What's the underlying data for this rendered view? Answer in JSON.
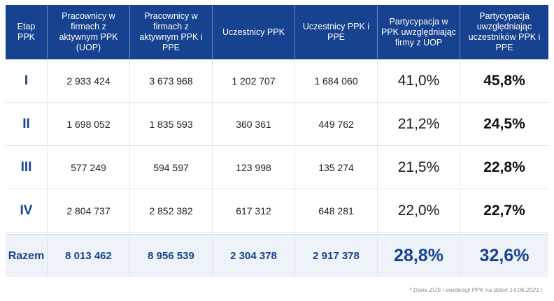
{
  "table": {
    "headers": [
      "Etap PPK",
      "Pracownicy w firmach z aktywnym PPK (UOP)",
      "Pracownicy w firmach z aktywnym PPK i PPE",
      "Uczestnicy PPK",
      "Uczestnicy PPK i PPE",
      "Partycypacja w PPK uwzględniając firmy z UOP",
      "Partycypacja uwzględniając uczestników PPK i PPE"
    ],
    "rows": [
      [
        "I",
        "2 933 424",
        "3 673 968",
        "1 202 707",
        "1 684 060",
        "41,0%",
        "45,8%"
      ],
      [
        "II",
        "1 698 052",
        "1 835 593",
        "360 361",
        "449 762",
        "21,2%",
        "24,5%"
      ],
      [
        "III",
        "577 249",
        "594 597",
        "123 998",
        "135 274",
        "21,5%",
        "22,8%"
      ],
      [
        "IV",
        "2 804 737",
        "2 852 382",
        "617 312",
        "648 281",
        "22,0%",
        "22,7%"
      ]
    ],
    "total": [
      "Razem",
      "8 013 462",
      "8 956 539",
      "2 304 378",
      "2 917 378",
      "28,8%",
      "32,6%"
    ]
  },
  "footnote": "* Dane ZUS i ewidencji PPK na dzień 14.06.2021 r.",
  "colors": {
    "header_bg": "#17428f",
    "accent": "#17428f",
    "total_bg": "#eef3fa"
  }
}
